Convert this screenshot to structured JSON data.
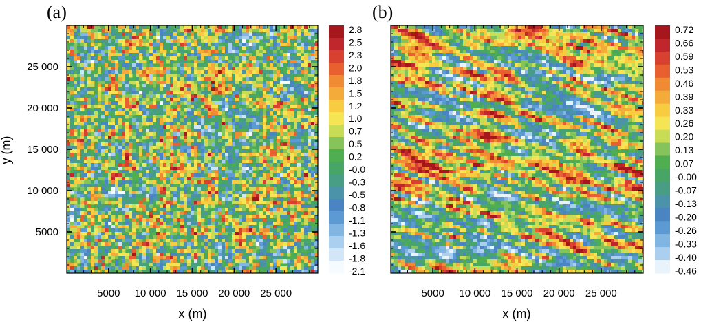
{
  "chart_data": [
    {
      "type": "heatmap",
      "panel_label": "(a)",
      "xlabel": "x (m)",
      "ylabel": "y (m)",
      "xlim": [
        0,
        30000
      ],
      "ylim": [
        0,
        30000
      ],
      "xticks": [
        5000,
        10000,
        15000,
        20000,
        25000
      ],
      "yticks": [
        5000,
        10000,
        15000,
        20000,
        25000
      ],
      "xtick_labels": [
        "5000",
        "10 000",
        "15 000",
        "20 000",
        "25 000"
      ],
      "ytick_labels": [
        "5000",
        "10 000",
        "15 000",
        "20 000",
        "25 000"
      ],
      "colorbar": {
        "levels": [
          "2.8",
          "2.5",
          "2.3",
          "2.0",
          "1.8",
          "1.5",
          "1.2",
          "1.0",
          "0.7",
          "0.5",
          "0.2",
          "-0.0",
          "-0.3",
          "-0.5",
          "-0.8",
          "-1.1",
          "-1.3",
          "-1.6",
          "-1.8",
          "-2.1"
        ],
        "colors_top_to_bottom": [
          "#a5161d",
          "#c0272d",
          "#d84030",
          "#e8602f",
          "#f08a33",
          "#f5ab3a",
          "#f8cc40",
          "#f5e453",
          "#c8dc55",
          "#86c35a",
          "#4fae50",
          "#47a565",
          "#489e84",
          "#4a93a8",
          "#4a84c2",
          "#5b9ad2",
          "#82b6e2",
          "#abd0ef",
          "#d3e6f7",
          "#f6fbff"
        ]
      },
      "pattern": "fine-grained mottled field with faint diagonal banding, values mostly near zero (green)"
    },
    {
      "type": "heatmap",
      "panel_label": "(b)",
      "xlabel": "x (m)",
      "ylabel": "",
      "xlim": [
        0,
        30000
      ],
      "ylim": [
        0,
        30000
      ],
      "xticks": [
        5000,
        10000,
        15000,
        20000,
        25000
      ],
      "yticks": [
        5000,
        10000,
        15000,
        20000,
        25000
      ],
      "xtick_labels": [
        "5000",
        "10 000",
        "15 000",
        "20 000",
        "25 000"
      ],
      "ytick_labels": [],
      "colorbar": {
        "levels": [
          "0.72",
          "0.66",
          "0.59",
          "0.53",
          "0.46",
          "0.39",
          "0.33",
          "0.26",
          "0.20",
          "0.13",
          "0.07",
          "-0.00",
          "-0.07",
          "-0.13",
          "-0.20",
          "-0.26",
          "-0.33",
          "-0.40",
          "-0.46"
        ],
        "colors_top_to_bottom": [
          "#a5161d",
          "#c0272d",
          "#d84030",
          "#e8602f",
          "#f08a33",
          "#f5ab3a",
          "#f8cc40",
          "#f5e453",
          "#c8dc55",
          "#86c35a",
          "#4fae50",
          "#47a565",
          "#489e84",
          "#4a93a8",
          "#4a84c2",
          "#5b9ad2",
          "#82b6e2",
          "#abd0ef",
          "#e8f3fb"
        ]
      },
      "pattern": "elongated streaks tilted downward to the right, values mostly near zero (green)"
    }
  ]
}
